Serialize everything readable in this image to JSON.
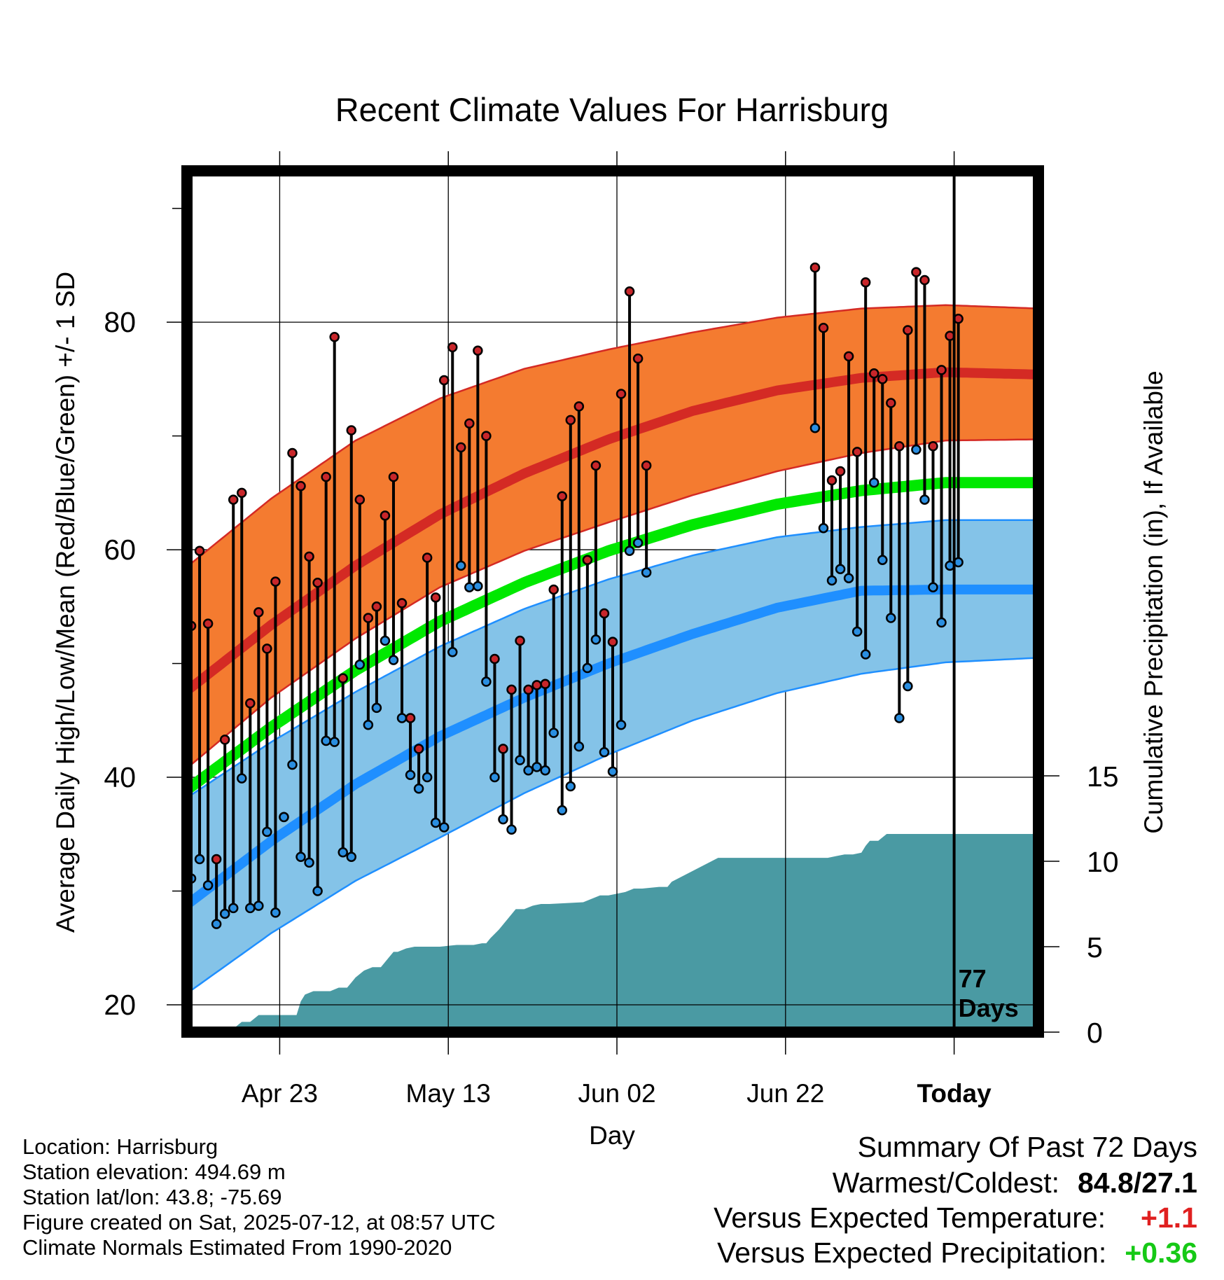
{
  "chart_data": {
    "type": "line",
    "title": "Recent Climate Values For Harrisburg",
    "xlabel": "Day",
    "ylabel_left": "Average Daily High/Low/Mean (Red/Blue/Green) +/- 1 SD",
    "ylabel_right": "Cumulative Precipitation (in), If Available",
    "x_tick_labels": [
      "Apr 23",
      "May 13",
      "Jun 02",
      "Jun 22",
      "Today"
    ],
    "x_tick_days": [
      11,
      31,
      51,
      71,
      91
    ],
    "xlim_days": [
      0,
      101
    ],
    "ylim_left": [
      17.6,
      93.3
    ],
    "y_ticks_left": [
      20,
      40,
      60,
      80
    ],
    "ylim_right": [
      0,
      50
    ],
    "y_ticks_right": [
      0,
      5,
      10,
      15
    ],
    "today_marker": {
      "day": 91,
      "label_line1": "77",
      "label_line2": "Days"
    },
    "normals": {
      "days": [
        0,
        10,
        20,
        30,
        40,
        50,
        60,
        70,
        80,
        90,
        101
      ],
      "high_mean": [
        47.6,
        53.4,
        58.6,
        63.1,
        66.7,
        69.7,
        72.2,
        74.0,
        75.1,
        75.6,
        75.4
      ],
      "high_plus_sd": [
        58.5,
        64.5,
        69.6,
        73.3,
        75.9,
        77.6,
        79.1,
        80.4,
        81.2,
        81.5,
        81.2
      ],
      "high_minus_sd": [
        40.8,
        47.0,
        52.2,
        56.7,
        59.9,
        62.4,
        64.8,
        66.9,
        68.5,
        69.6,
        69.7
      ],
      "mean": [
        38.9,
        44.4,
        49.4,
        53.7,
        57.1,
        59.9,
        62.2,
        64.0,
        65.2,
        65.9,
        65.9
      ],
      "low_mean": [
        28.8,
        34.4,
        39.4,
        43.6,
        47.0,
        50.0,
        52.6,
        54.9,
        56.4,
        56.5,
        56.5
      ],
      "low_plus_sd": [
        38.2,
        43.1,
        47.5,
        51.5,
        54.8,
        57.4,
        59.5,
        61.1,
        62.0,
        62.6,
        62.6
      ],
      "low_minus_sd": [
        21.0,
        26.3,
        30.9,
        34.7,
        38.6,
        42.0,
        45.0,
        47.4,
        49.1,
        50.1,
        50.5
      ]
    },
    "daily": {
      "start_day": 0,
      "high": [
        53.3,
        59.9,
        53.5,
        32.8,
        43.3,
        64.4,
        65.0,
        46.5,
        54.5,
        51.3,
        57.2,
        36.5,
        68.5,
        65.6,
        59.4,
        57.1,
        66.4,
        78.7,
        48.7,
        70.5,
        64.4,
        54.0,
        55.0,
        63.0,
        66.4,
        55.3,
        45.2,
        42.5,
        59.3,
        55.8,
        74.9,
        77.8,
        69.0,
        71.1,
        77.5,
        70.0,
        50.4,
        42.5,
        47.7,
        52.0,
        47.7,
        48.1,
        48.2,
        56.5,
        64.7,
        71.4,
        72.6,
        59.1,
        67.4,
        54.4,
        51.9,
        73.7,
        82.7,
        76.8,
        67.4
      ],
      "low": [
        31.1,
        32.8,
        30.5,
        27.1,
        28.0,
        28.5,
        39.9,
        28.5,
        28.7,
        35.2,
        28.1,
        36.5,
        41.1,
        33.0,
        32.5,
        30.0,
        43.2,
        43.1,
        33.4,
        33.0,
        49.9,
        44.6,
        46.1,
        52.0,
        50.3,
        45.2,
        40.2,
        39.0,
        40.0,
        36.0,
        35.6,
        51.0,
        58.6,
        56.7,
        56.8,
        48.4,
        40.0,
        36.3,
        35.4,
        41.5,
        40.6,
        40.9,
        40.6,
        43.9,
        37.1,
        39.2,
        42.7,
        49.6,
        52.1,
        42.2,
        40.5,
        44.6,
        59.9,
        60.6,
        58.0
      ],
      "high2": [
        84.8,
        79.5,
        66.1,
        66.9,
        77.0,
        68.6,
        83.5,
        75.5,
        75.0,
        72.9,
        69.1,
        79.3,
        84.4,
        83.7,
        69.1,
        75.8,
        78.8,
        80.3
      ],
      "low2": [
        70.7,
        61.9,
        57.3,
        58.3,
        57.5,
        52.8,
        50.8,
        65.9,
        59.1,
        54.0,
        45.2,
        48.0,
        68.8,
        64.4,
        56.7,
        53.6,
        58.6,
        58.9
      ],
      "high2_start_day": 74
    },
    "precip_cumulative": {
      "days": [
        0,
        5,
        5.5,
        6.5,
        7.5,
        8.5,
        10,
        12,
        13,
        13.5,
        14,
        15,
        17,
        18,
        19,
        19.5,
        20,
        21,
        22,
        23,
        24,
        24.5,
        25,
        26,
        27,
        28,
        30,
        32,
        34,
        35,
        35.5,
        36,
        37,
        38,
        39,
        40,
        41,
        42,
        43,
        47,
        48,
        49,
        50,
        52,
        53,
        54,
        56,
        57,
        57.5,
        63,
        66,
        69,
        74,
        76,
        77,
        78,
        79,
        80,
        80.5,
        81,
        82,
        83,
        86,
        91,
        101
      ],
      "values": [
        0,
        0,
        0.2,
        0.6,
        0.6,
        1.0,
        1.0,
        1.0,
        1.0,
        1.8,
        2.2,
        2.4,
        2.4,
        2.6,
        2.6,
        2.9,
        3.2,
        3.6,
        3.8,
        3.8,
        4.4,
        4.7,
        4.7,
        4.9,
        5.0,
        5.0,
        5.0,
        5.1,
        5.1,
        5.2,
        5.2,
        5.5,
        6.0,
        6.6,
        7.2,
        7.2,
        7.4,
        7.5,
        7.5,
        7.6,
        7.8,
        8.0,
        8.0,
        8.2,
        8.4,
        8.4,
        8.5,
        8.5,
        8.8,
        10.2,
        10.2,
        10.2,
        10.2,
        10.2,
        10.3,
        10.4,
        10.4,
        10.5,
        10.9,
        11.2,
        11.2,
        11.6,
        11.6,
        11.6,
        11.6
      ]
    },
    "colors": {
      "high_band": "#f47b30",
      "high_line": "#d42a24",
      "mean_line": "#00e800",
      "low_band": "#84c3e8",
      "low_line": "#1f8fff",
      "precip": "#4a9aa3",
      "high_dot": "#c8262a",
      "low_dot": "#2a8ee0",
      "plus_value": "#e02020",
      "precip_value": "#16c916"
    },
    "grid": true
  },
  "info": {
    "location": "Location: Harrisburg",
    "elevation": "Station elevation: 494.69 m",
    "latlon": "Station lat/lon: 43.8; -75.69",
    "created": "Figure created on Sat, 2025-07-12, at 08:57 UTC",
    "normals": "Climate Normals Estimated From 1990-2020"
  },
  "summary": {
    "title": "Summary Of Past 72 Days",
    "warmest_coldest_label": "Warmest/Coldest:",
    "warmest_coldest_value": "84.8/27.1",
    "temp_label": "Versus Expected Temperature:",
    "temp_value": "+1.1",
    "precip_label": "Versus Expected Precipitation:",
    "precip_value": "+0.36"
  }
}
